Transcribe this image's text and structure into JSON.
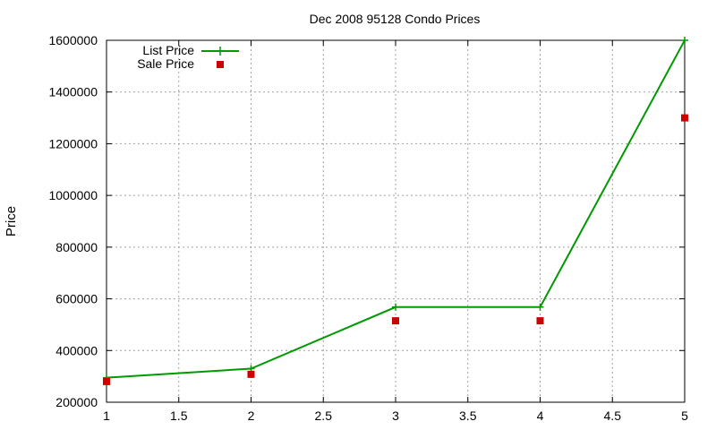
{
  "chart_data": {
    "type": "line",
    "title": "Dec 2008 95128 Condo Prices",
    "xlabel": "",
    "ylabel": "Price",
    "xlim": [
      1,
      5
    ],
    "ylim": [
      200000,
      1600000
    ],
    "x_ticks": [
      "1",
      "1.5",
      "2",
      "2.5",
      "3",
      "3.5",
      "4",
      "4.5",
      "5"
    ],
    "y_ticks": [
      "200000",
      "400000",
      "600000",
      "800000",
      "1000000",
      "1200000",
      "1400000",
      "1600000"
    ],
    "grid": true,
    "legend_position": "top-left",
    "series": [
      {
        "name": "List Price",
        "style": "line-with-plus-markers",
        "color": "#009900",
        "x": [
          1,
          2,
          3,
          4,
          5
        ],
        "y": [
          295000,
          330000,
          568000,
          568000,
          1600000
        ]
      },
      {
        "name": "Sale Price",
        "style": "square-points",
        "color": "#cc0000",
        "x": [
          1,
          2,
          3,
          4,
          5
        ],
        "y": [
          280000,
          308000,
          515000,
          515000,
          1300000
        ]
      }
    ]
  }
}
